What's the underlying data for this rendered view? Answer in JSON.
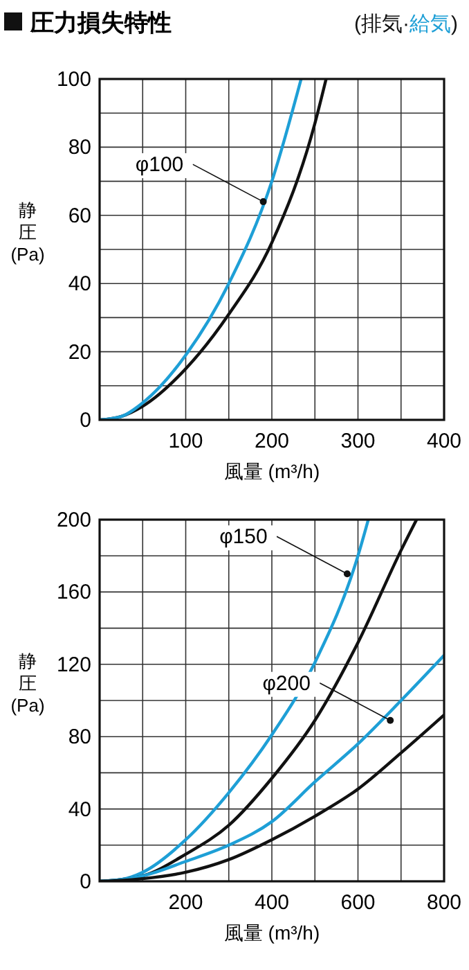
{
  "chart_data": [
    {
      "type": "line",
      "title": "圧力損失特性",
      "subtitle": "(排気·給気)",
      "xlabel": "風量 (m³/h)",
      "ylabel": "静圧(Pa)",
      "grid": true,
      "xlim": [
        0,
        400
      ],
      "ylim": [
        0,
        100
      ],
      "xticks": [
        {
          "value": 0,
          "label": null
        },
        {
          "value": 50,
          "label": null
        },
        100,
        {
          "value": 150,
          "label": null
        },
        200,
        {
          "value": 250,
          "label": null
        },
        300,
        {
          "value": 350,
          "label": null
        },
        400
      ],
      "yticks": [
        0,
        {
          "value": 10,
          "label": null
        },
        20,
        {
          "value": 30,
          "label": null
        },
        40,
        {
          "value": 50,
          "label": null
        },
        60,
        {
          "value": 70,
          "label": null
        },
        80,
        {
          "value": 90,
          "label": null
        },
        100
      ],
      "annotations": [
        {
          "text": "φ100",
          "x": 190,
          "y": 64
        }
      ],
      "series": [
        {
          "color": "#111111",
          "x": [
            0,
            25,
            50,
            100,
            150,
            200,
            250,
            263
          ],
          "values": [
            0,
            1,
            4,
            15,
            31,
            52,
            87,
            100
          ]
        },
        {
          "color": "#1e9fd6",
          "x": [
            0,
            25,
            50,
            100,
            150,
            200,
            234
          ],
          "values": [
            0,
            1,
            5,
            19,
            40,
            70,
            100
          ]
        }
      ]
    },
    {
      "type": "line",
      "xlabel": "風量 (m³/h)",
      "ylabel": "静圧(Pa)",
      "grid": true,
      "xlim": [
        0,
        800
      ],
      "ylim": [
        0,
        200
      ],
      "xticks": [
        {
          "value": 0,
          "label": null
        },
        {
          "value": 100,
          "label": null
        },
        200,
        {
          "value": 300,
          "label": null
        },
        400,
        {
          "value": 500,
          "label": null
        },
        600,
        {
          "value": 700,
          "label": null
        },
        800
      ],
      "yticks": [
        0,
        {
          "value": 20,
          "label": null
        },
        40,
        {
          "value": 60,
          "label": null
        },
        80,
        {
          "value": 100,
          "label": null
        },
        120,
        {
          "value": 140,
          "label": null
        },
        160,
        {
          "value": 180,
          "label": null
        },
        200
      ],
      "annotations": [
        {
          "text": "φ150",
          "x": 575,
          "y": 170
        },
        {
          "text": "φ200",
          "x": 675,
          "y": 89
        }
      ],
      "series": [
        {
          "color": "#1e9fd6",
          "x": [
            0,
            50,
            100,
            200,
            300,
            400,
            500,
            600,
            624
          ],
          "values": [
            0,
            1,
            5,
            23,
            49,
            81,
            121,
            180,
            200
          ]
        },
        {
          "color": "#111111",
          "x": [
            0,
            50,
            100,
            200,
            300,
            400,
            500,
            600,
            700,
            736
          ],
          "values": [
            0,
            1,
            3,
            15,
            31,
            57,
            89,
            132,
            183,
            200
          ]
        },
        {
          "color": "#1e9fd6",
          "x": [
            0,
            50,
            100,
            200,
            300,
            400,
            500,
            600,
            700,
            800
          ],
          "values": [
            0,
            1,
            3,
            11,
            20,
            33,
            55,
            76,
            100,
            125
          ]
        },
        {
          "color": "#111111",
          "x": [
            0,
            50,
            100,
            200,
            300,
            400,
            500,
            600,
            700,
            800
          ],
          "values": [
            0,
            0.5,
            1.5,
            5,
            12,
            23,
            36,
            51,
            71,
            92
          ]
        }
      ]
    }
  ]
}
